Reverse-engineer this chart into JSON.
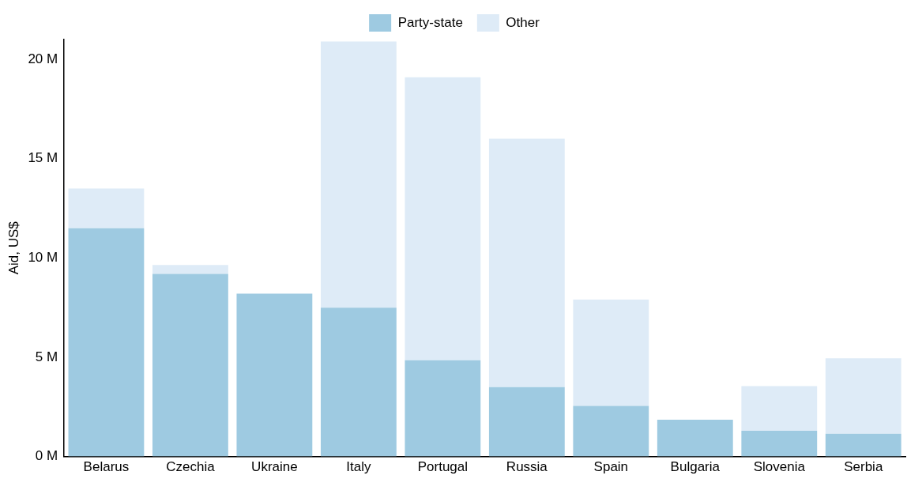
{
  "chart_data": {
    "type": "bar",
    "stacked": true,
    "ylabel": "Aid, US$",
    "legend": "top",
    "grid": false,
    "categories": [
      "Belarus",
      "Czechia",
      "Ukraine",
      "Italy",
      "Portugal",
      "Russia",
      "Spain",
      "Bulgaria",
      "Slovenia",
      "Serbia"
    ],
    "series": [
      {
        "name": "Party-state",
        "color": "#9ecae1",
        "values": [
          11.5,
          9.2,
          8.2,
          7.5,
          4.85,
          3.5,
          2.55,
          1.85,
          1.3,
          1.15
        ]
      },
      {
        "name": "Other",
        "color": "#deebf7",
        "values": [
          2.0,
          0.45,
          0,
          13.4,
          14.25,
          12.5,
          5.35,
          0,
          2.25,
          3.8
        ]
      }
    ],
    "ylim": [
      0,
      21
    ],
    "yticks": [
      {
        "value": 0,
        "label": "0 M"
      },
      {
        "value": 5,
        "label": "5 M"
      },
      {
        "value": 10,
        "label": "10 M"
      },
      {
        "value": 15,
        "label": "15 M"
      },
      {
        "value": 20,
        "label": "20 M"
      }
    ]
  }
}
